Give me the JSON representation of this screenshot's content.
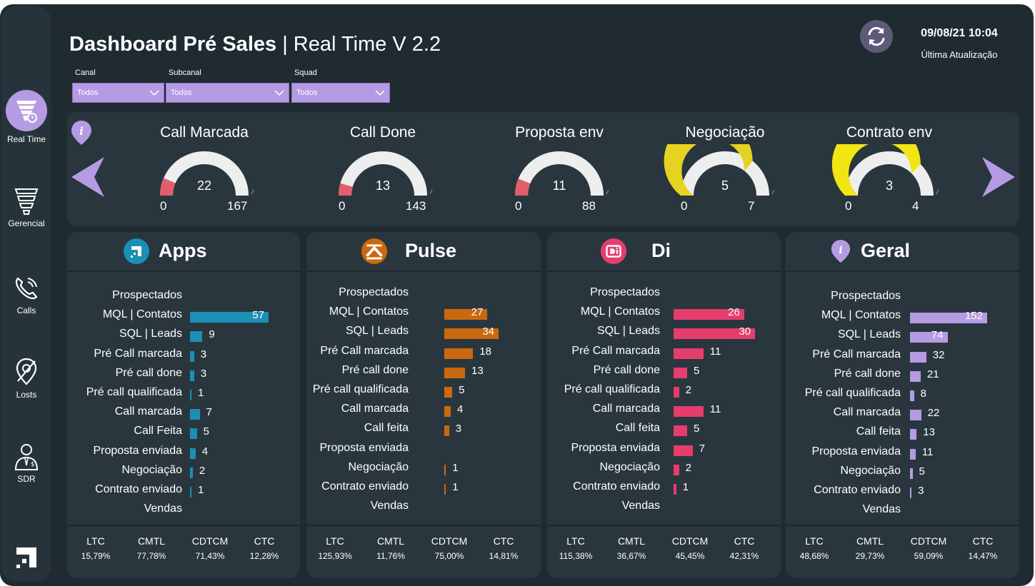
{
  "header": {
    "title_bold": "Dashboard Pré Sales",
    "title_rest": " | Real Time V 2.2",
    "update_time": "09/08/21 10:04",
    "update_label": "Última Atualização"
  },
  "filters": [
    {
      "label": "Canal",
      "value": "Todos"
    },
    {
      "label": "Subcanal",
      "value": "Todos"
    },
    {
      "label": "Squad",
      "value": "Todos"
    }
  ],
  "sidebar": {
    "items": [
      {
        "label": "Real Time",
        "icon": "funnel-clock-icon",
        "active": true
      },
      {
        "label": "Gerencial",
        "icon": "funnel-icon"
      },
      {
        "label": "Calls",
        "icon": "phone-icon"
      },
      {
        "label": "Losts",
        "icon": "location-off-icon"
      },
      {
        "label": "SDR",
        "icon": "person-tie-icon"
      }
    ]
  },
  "gauges": [
    {
      "title": "Call Marcada",
      "value": "22",
      "min": "0",
      "max": "167",
      "fraction": 0.13,
      "color": "#e05f6b"
    },
    {
      "title": "Call Done",
      "value": "13",
      "min": "0",
      "max": "143",
      "fraction": 0.09,
      "color": "#e05f6b"
    },
    {
      "title": "Proposta env",
      "value": "11",
      "min": "0",
      "max": "88",
      "fraction": 0.125,
      "color": "#e05f6b"
    },
    {
      "title": "Negociação",
      "value": "5",
      "min": "0",
      "max": "7",
      "fraction": 0.714,
      "color": "#e6d321"
    },
    {
      "title": "Contrato env",
      "value": "3",
      "min": "0",
      "max": "4",
      "fraction": 0.75,
      "color": "#f1e514"
    }
  ],
  "panels": [
    {
      "name": "Apps",
      "color": "#1c8fb5",
      "rows": [
        {
          "label": "Prospectados",
          "value": ""
        },
        {
          "label": "MQL | Contatos",
          "value": "57"
        },
        {
          "label": "SQL | Leads",
          "value": "9"
        },
        {
          "label": "Pré Call marcada",
          "value": "3"
        },
        {
          "label": "Pré call done",
          "value": "3"
        },
        {
          "label": "Pré call qualificada",
          "value": "1"
        },
        {
          "label": "Call marcada",
          "value": "7"
        },
        {
          "label": "Call Feita",
          "value": "5"
        },
        {
          "label": "Proposta enviada",
          "value": "4"
        },
        {
          "label": "Negociação",
          "value": "2"
        },
        {
          "label": "Contrato enviado",
          "value": "1"
        },
        {
          "label": "Vendas",
          "value": ""
        }
      ],
      "kpis": [
        {
          "name": "LTC",
          "value": "15,79%"
        },
        {
          "name": "CMTL",
          "value": "77,78%"
        },
        {
          "name": "CDTCM",
          "value": "71,43%"
        },
        {
          "name": "CTC",
          "value": "12,28%"
        }
      ]
    },
    {
      "name": "Pulse",
      "color": "#c9690f",
      "rows": [
        {
          "label": "Prospectados",
          "value": ""
        },
        {
          "label": "MQL | Contatos",
          "value": "27"
        },
        {
          "label": "SQL | Leads",
          "value": "34"
        },
        {
          "label": "Pré Call marcada",
          "value": "18"
        },
        {
          "label": "Pré call done",
          "value": "13"
        },
        {
          "label": "Pré call qualificada",
          "value": "5"
        },
        {
          "label": "Call marcada",
          "value": "4"
        },
        {
          "label": "Call feita",
          "value": "3"
        },
        {
          "label": "Proposta enviada",
          "value": ""
        },
        {
          "label": "Negociação",
          "value": "1"
        },
        {
          "label": "Contrato enviado",
          "value": "1"
        },
        {
          "label": "Vendas",
          "value": ""
        }
      ],
      "kpis": [
        {
          "name": "LTC",
          "value": "125,93%"
        },
        {
          "name": "CMTL",
          "value": "11,76%"
        },
        {
          "name": "CDTCM",
          "value": "75,00%"
        },
        {
          "name": "CTC",
          "value": "14,81%"
        }
      ]
    },
    {
      "name": "Di",
      "color": "#e53d6c",
      "rows": [
        {
          "label": "Prospectados",
          "value": ""
        },
        {
          "label": "MQL | Contatos",
          "value": "26"
        },
        {
          "label": "SQL | Leads",
          "value": "30"
        },
        {
          "label": "Pré Call marcada",
          "value": "11"
        },
        {
          "label": "Pré call done",
          "value": "5"
        },
        {
          "label": "Pré call qualificada",
          "value": "2"
        },
        {
          "label": "Call marcada",
          "value": "11"
        },
        {
          "label": "Call feita",
          "value": "5"
        },
        {
          "label": "Proposta enviada",
          "value": "7"
        },
        {
          "label": "Negociação",
          "value": "2"
        },
        {
          "label": "Contrato enviado",
          "value": "1"
        },
        {
          "label": "Vendas",
          "value": ""
        }
      ],
      "kpis": [
        {
          "name": "LTC",
          "value": "115,38%"
        },
        {
          "name": "CMTL",
          "value": "36,67%"
        },
        {
          "name": "CDTCM",
          "value": "45,45%"
        },
        {
          "name": "CTC",
          "value": "42,31%"
        }
      ]
    },
    {
      "name": "Geral",
      "color": "#b59be3",
      "rows": [
        {
          "label": "Prospectados",
          "value": ""
        },
        {
          "label": "MQL | Contatos",
          "value": "152"
        },
        {
          "label": "SQL | Leads",
          "value": "74"
        },
        {
          "label": "Pré Call marcada",
          "value": "32"
        },
        {
          "label": "Pré call done",
          "value": "21"
        },
        {
          "label": "Pré call qualificada",
          "value": "8"
        },
        {
          "label": "Call marcada",
          "value": "22"
        },
        {
          "label": "Call feita",
          "value": "13"
        },
        {
          "label": "Proposta enviada",
          "value": "11"
        },
        {
          "label": "Negociação",
          "value": "5"
        },
        {
          "label": "Contrato enviado",
          "value": "3"
        },
        {
          "label": "Vendas",
          "value": ""
        }
      ],
      "kpis": [
        {
          "name": "LTC",
          "value": "48,68%"
        },
        {
          "name": "CMTL",
          "value": "29,73%"
        },
        {
          "name": "CDTCM",
          "value": "59,09%"
        },
        {
          "name": "CTC",
          "value": "14,47%"
        }
      ]
    }
  ]
}
